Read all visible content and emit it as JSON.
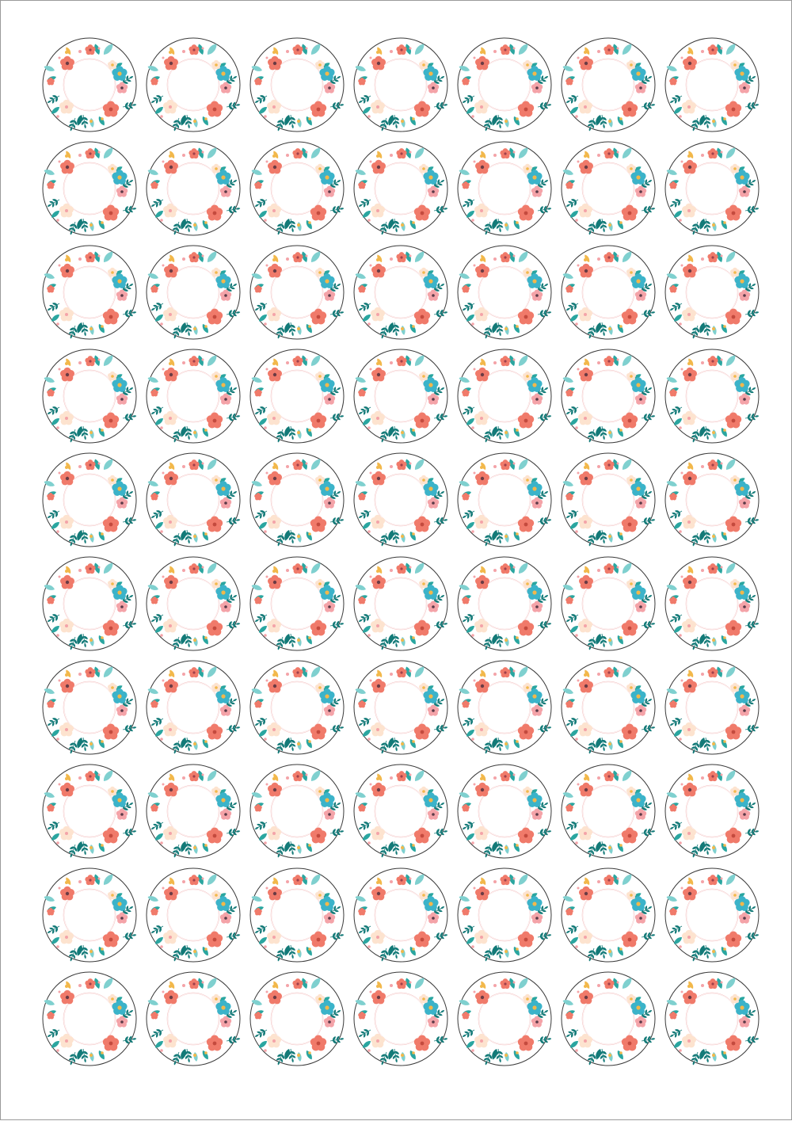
{
  "sheet": {
    "columns": 7,
    "rows": 10,
    "label_shape": "circle",
    "label_design": "floral-wreath",
    "colors": {
      "outline": "#3a3a3a",
      "inner_ring": "#f2b8b8",
      "teal": "#2aa6a0",
      "dark_teal": "#137a78",
      "light_teal": "#7fd0cf",
      "coral": "#f07a6a",
      "pink": "#f4a3a8",
      "yellow": "#f2b84b",
      "cream": "#fde3cf",
      "blue": "#3bb3c9"
    }
  }
}
